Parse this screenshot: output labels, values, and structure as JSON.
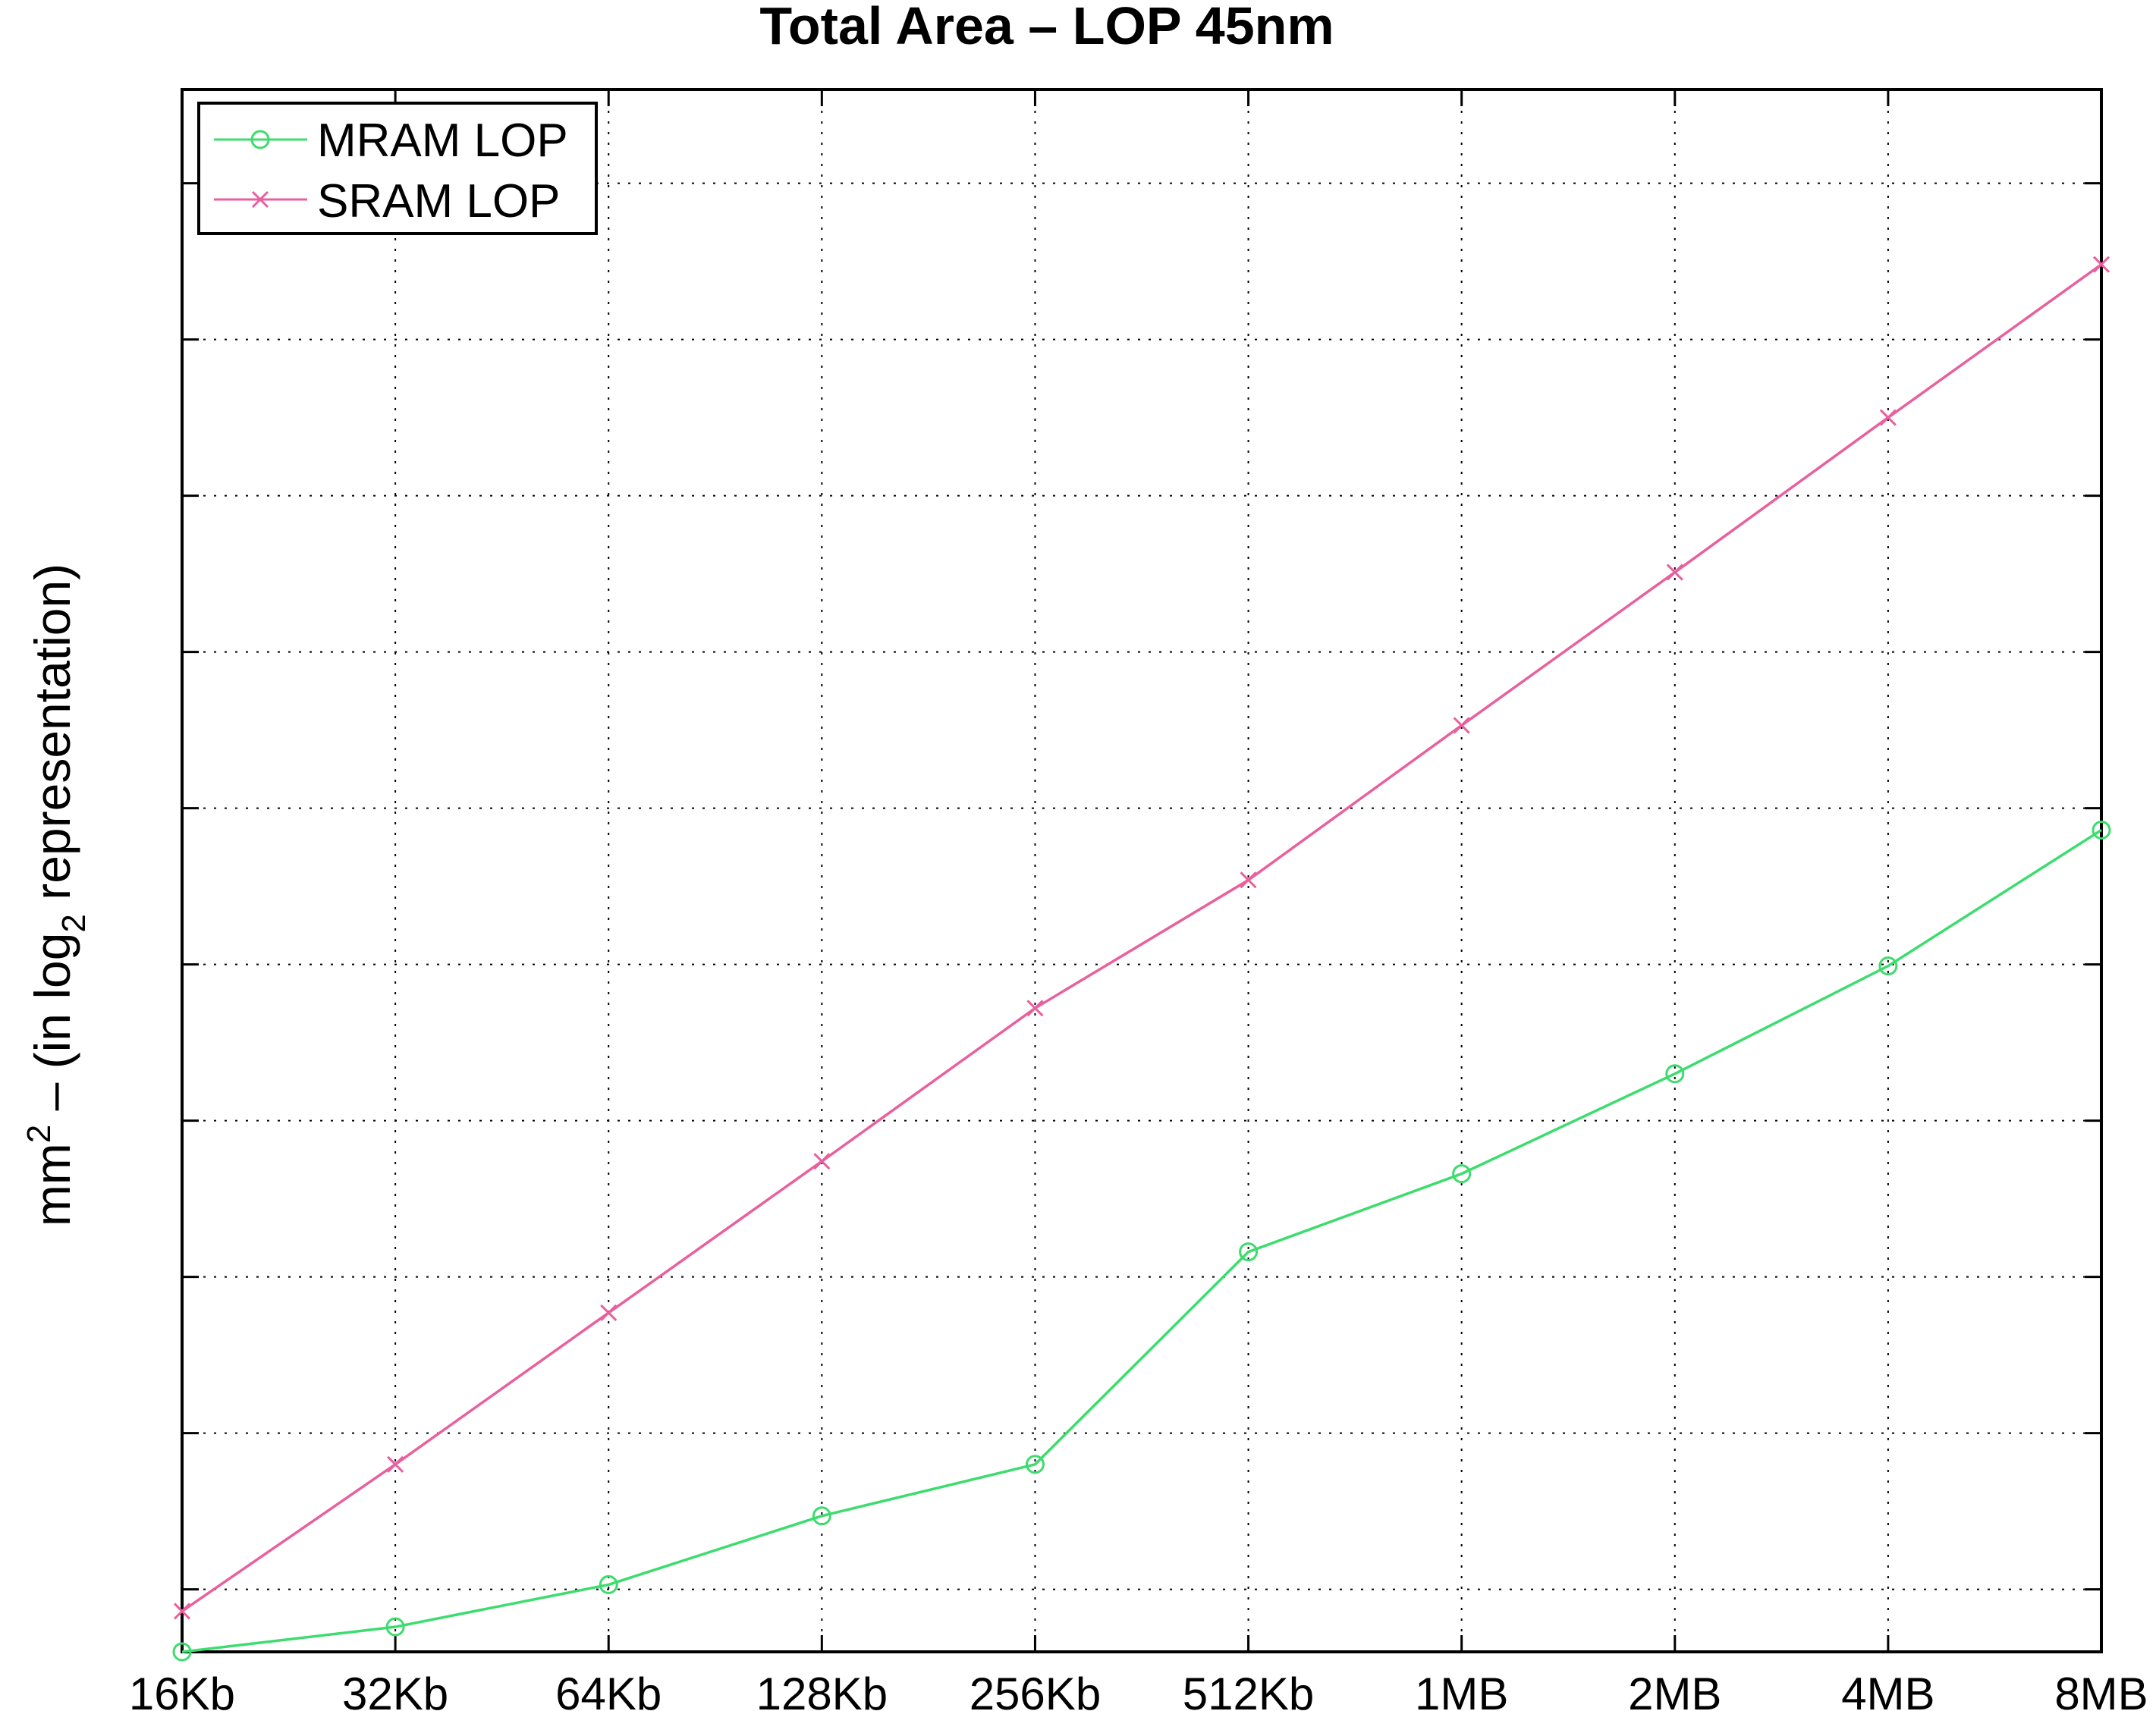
{
  "chart_data": {
    "type": "line",
    "title": "Total Area – LOP  45nm",
    "ylabel": {
      "base": "mm",
      "sup": "2",
      "mid": " – (in log",
      "sub": "2",
      "end": " representation)"
    },
    "xlabel": "",
    "x": [
      "16Kb",
      "32Kb",
      "64Kb",
      "128Kb",
      "256Kb",
      "512Kb",
      "1MB",
      "2MB",
      "4MB",
      "8MB"
    ],
    "y_scale": "log2",
    "ylim": [
      -0.4,
      9.6
    ],
    "y_ticks": [
      0,
      1,
      2,
      3,
      4,
      5,
      6,
      7,
      8,
      9
    ],
    "y_tick_labels_shown": false,
    "grid": true,
    "legend_position": "top-left",
    "series": [
      {
        "name": "MRAM LOP",
        "color": "#3ddc6e",
        "marker": "circle",
        "values": [
          -0.4,
          -0.24,
          0.03,
          0.47,
          0.8,
          2.16,
          2.66,
          3.3,
          3.99,
          4.86
        ]
      },
      {
        "name": "SRAM LOP",
        "color": "#e8609e",
        "marker": "x",
        "values": [
          -0.14,
          0.8,
          1.77,
          2.74,
          3.72,
          4.54,
          5.53,
          6.51,
          7.5,
          8.48
        ]
      }
    ]
  }
}
